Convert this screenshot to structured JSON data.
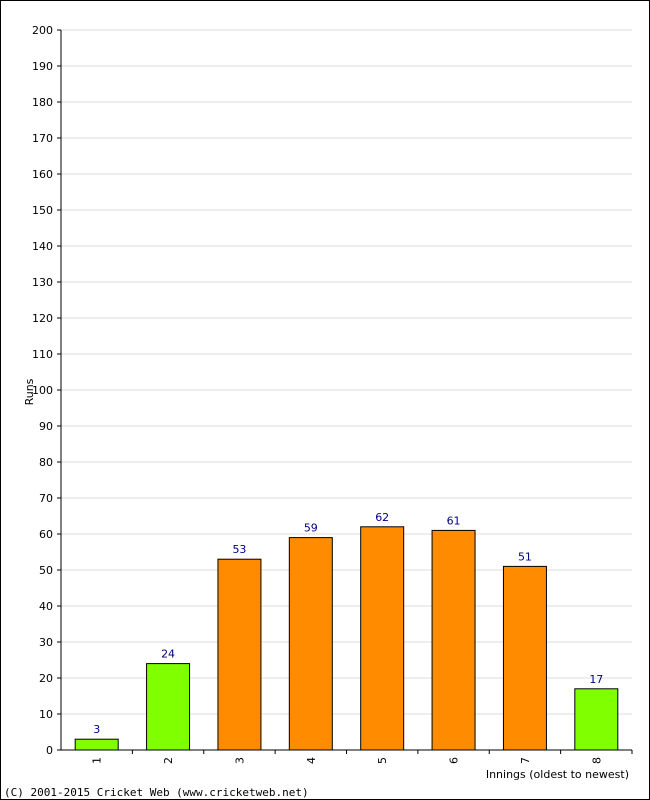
{
  "chart_data": {
    "type": "bar",
    "categories": [
      "1",
      "2",
      "3",
      "4",
      "5",
      "6",
      "7",
      "8"
    ],
    "values": [
      3,
      24,
      53,
      59,
      62,
      61,
      51,
      17
    ],
    "bar_colors": [
      "#80ff00",
      "#80ff00",
      "#ff8c00",
      "#ff8c00",
      "#ff8c00",
      "#ff8c00",
      "#ff8c00",
      "#80ff00"
    ],
    "ylabel": "Runs",
    "xlabel": "Innings (oldest to newest)",
    "ylim": [
      0,
      200
    ],
    "yticks": [
      0,
      10,
      20,
      30,
      40,
      50,
      60,
      70,
      80,
      90,
      100,
      110,
      120,
      130,
      140,
      150,
      160,
      170,
      180,
      190,
      200
    ],
    "grid": true,
    "show_value_labels": true
  },
  "footer": {
    "copyright": "(C) 2001-2015 Cricket Web (www.cricketweb.net)"
  },
  "colors": {
    "grid": "#dddddd",
    "axis": "#000000",
    "bar_border": "#000000",
    "value_label": "#000080"
  }
}
